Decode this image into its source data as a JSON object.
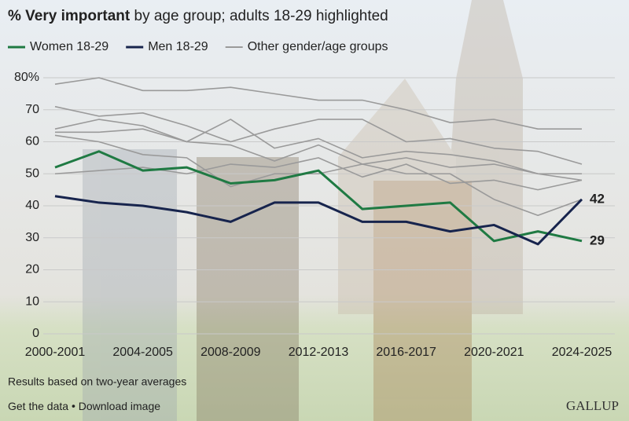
{
  "chart_data": {
    "type": "line",
    "title": [
      "% Very important",
      "by age group; adults 18-29 highlighted"
    ],
    "categories": [
      "2000-2001",
      null,
      "2004-2005",
      null,
      "2008-2009",
      null,
      "2012-2013",
      null,
      "2016-2017",
      null,
      "2020-2021",
      null,
      "2024-2025"
    ],
    "series": [
      {
        "name": "Women 18-29",
        "color": "#1f7a43",
        "values": [
          52,
          57,
          51,
          52,
          47,
          48,
          51,
          39,
          40,
          41,
          29,
          32,
          29
        ]
      },
      {
        "name": "Men 18-29",
        "color": "#17244d",
        "values": [
          43,
          41,
          40,
          38,
          35,
          41,
          41,
          35,
          35,
          32,
          34,
          28,
          42
        ]
      }
    ],
    "other_series": {
      "name": "Other gender/age groups",
      "color": "#9a9a9a",
      "lines": [
        [
          78,
          80,
          76,
          76,
          77,
          75,
          73,
          73,
          70,
          66,
          67,
          64,
          64
        ],
        [
          71,
          68,
          69,
          65,
          60,
          64,
          67,
          67,
          60,
          61,
          58,
          57,
          53
        ],
        [
          64,
          67,
          65,
          60,
          67,
          58,
          61,
          55,
          57,
          56,
          54,
          50,
          50
        ],
        [
          63,
          63,
          64,
          60,
          59,
          54,
          59,
          53,
          55,
          52,
          53,
          50,
          48
        ],
        [
          50,
          51,
          52,
          50,
          53,
          52,
          55,
          49,
          53,
          47,
          48,
          45,
          48
        ],
        [
          62,
          60,
          56,
          55,
          46,
          50,
          50,
          53,
          50,
          50,
          42,
          37,
          42
        ]
      ]
    },
    "ylim": [
      0,
      80
    ],
    "yticks": [
      0,
      10,
      20,
      30,
      40,
      50,
      60,
      70,
      {
        "value": 80,
        "label": "80%"
      }
    ],
    "grid": true,
    "note": "Results based on two-year averages",
    "links": [
      "Get the data",
      "Download image"
    ],
    "logo": "GALLUP"
  }
}
